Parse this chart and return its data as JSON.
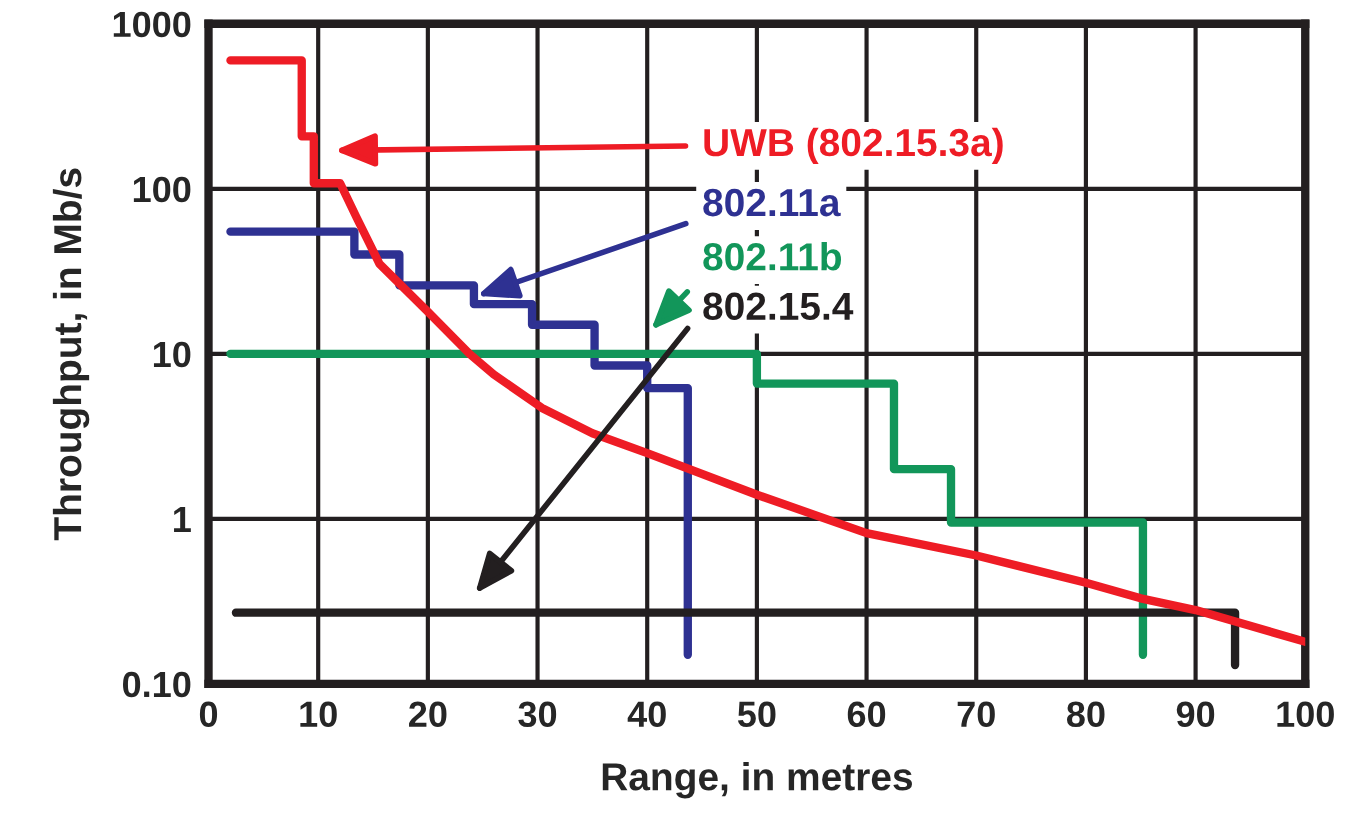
{
  "chart_data": {
    "type": "step",
    "xlabel": "Range, in metres",
    "ylabel": "Throughput, in Mb/s",
    "log": "y",
    "xlim": [
      0,
      100
    ],
    "xticks": [
      0,
      10,
      20,
      30,
      40,
      50,
      60,
      70,
      80,
      90,
      100
    ],
    "ylim": [
      0.1,
      1000
    ],
    "yticks": [
      {
        "value": 0.1,
        "label": "0.10"
      },
      1,
      10,
      100,
      1000
    ],
    "grid": true,
    "legend": false,
    "series": [
      {
        "type": "line",
        "name": "UWB (802.15.3a)",
        "color": "#ee1c25",
        "x": [
          2,
          8.5,
          8.5,
          9.6,
          9.6,
          12,
          13.5,
          15.6,
          20,
          23.8,
          26,
          30.4,
          35,
          40,
          50,
          60,
          70,
          80,
          85,
          90,
          100
        ],
        "values": [
          600,
          600,
          208,
          208,
          108,
          108,
          67,
          35,
          18,
          10,
          7.5,
          4.7,
          3.3,
          2.5,
          1.4,
          0.82,
          0.6,
          0.41,
          0.33,
          0.28,
          0.18
        ]
      },
      {
        "name": "802.11a",
        "color": "#2e3192",
        "x": [
          2,
          13.3,
          17.4,
          24.2,
          29.5,
          35.2,
          40,
          43.7,
          43.7
        ],
        "values": [
          55,
          40,
          26,
          20,
          15,
          8.5,
          6.2,
          0.15,
          0.15
        ]
      },
      {
        "name": "802.11b",
        "color": "#12965a",
        "x": [
          2,
          50,
          62.5,
          67.7,
          85.2,
          85.2
        ],
        "values": [
          10,
          6.6,
          2,
          0.95,
          0.15,
          0.15
        ]
      },
      {
        "name": "802.15.4",
        "color": "#231f20",
        "x": [
          2.5,
          93.6,
          93.6
        ],
        "values": [
          0.27,
          0.13,
          0.13
        ]
      }
    ]
  }
}
